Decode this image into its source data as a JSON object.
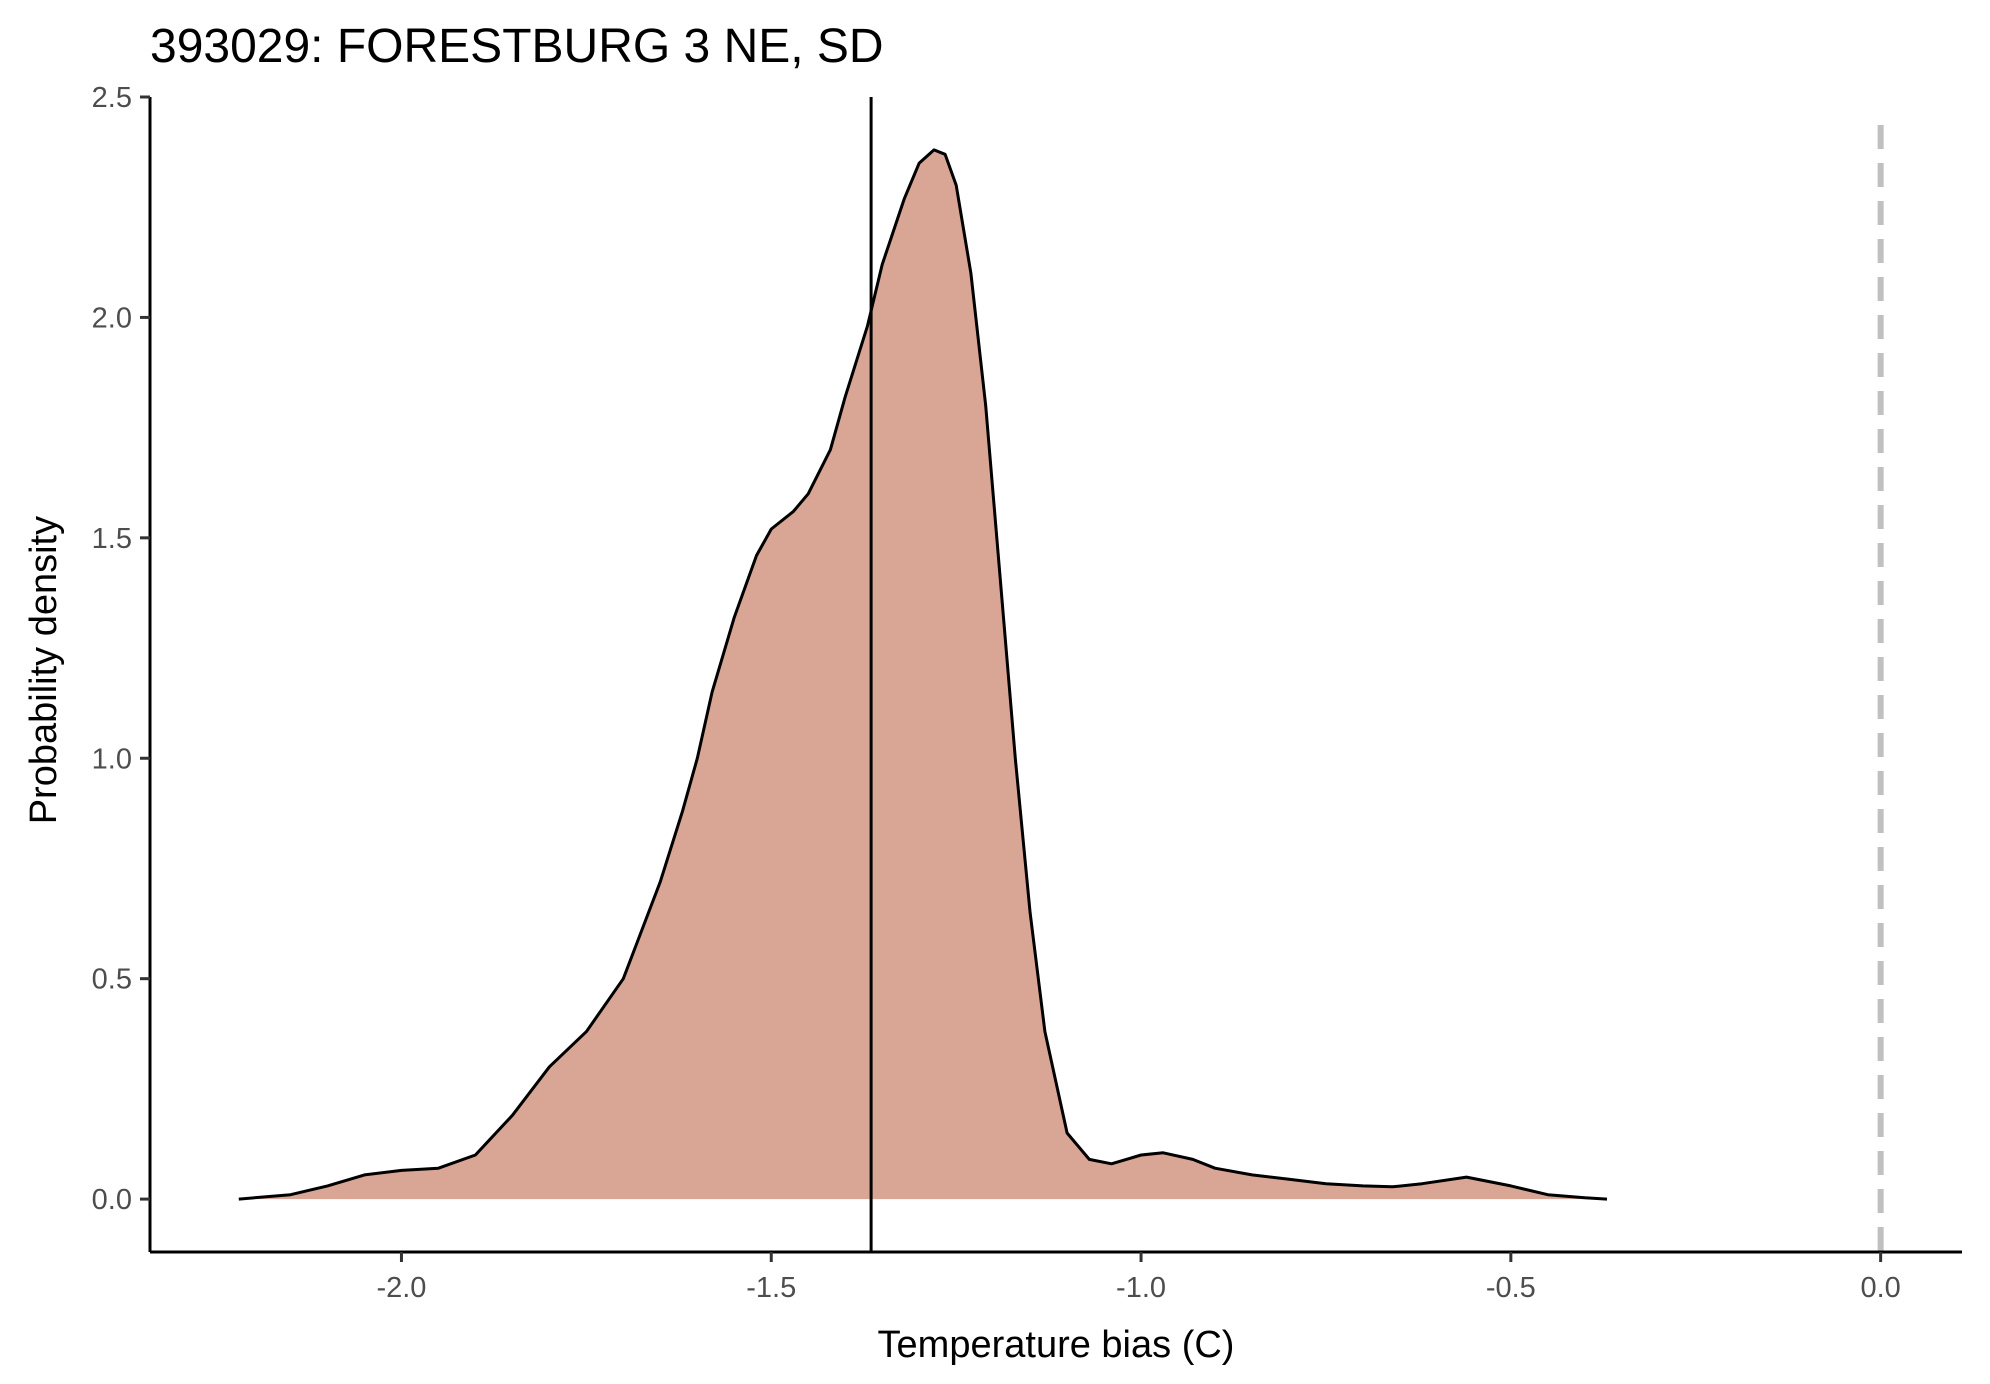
{
  "chart_data": {
    "type": "area",
    "title": "393029: FORESTBURG 3 NE, SD",
    "xlabel": "Temperature bias (C)",
    "ylabel": "Probability density",
    "xlim": [
      -2.34,
      0.11
    ],
    "ylim": [
      -0.12,
      2.5
    ],
    "x_ticks": [
      -2.0,
      -1.5,
      -1.0,
      -0.5,
      0.0
    ],
    "x_tick_labels": [
      "-2.0",
      "-1.5",
      "-1.0",
      "-0.5",
      "0.0"
    ],
    "y_ticks": [
      0.0,
      0.5,
      1.0,
      1.5,
      2.0,
      2.5
    ],
    "y_tick_labels": [
      "0.0",
      "0.5",
      "1.0",
      "1.5",
      "2.0",
      "2.5"
    ],
    "grid": false,
    "series": [
      {
        "fill_color": "#d9a695",
        "line_color": "#000000",
        "x": [
          -2.22,
          -2.15,
          -2.1,
          -2.05,
          -2.0,
          -1.95,
          -1.9,
          -1.85,
          -1.8,
          -1.75,
          -1.7,
          -1.65,
          -1.62,
          -1.6,
          -1.58,
          -1.55,
          -1.52,
          -1.5,
          -1.47,
          -1.45,
          -1.42,
          -1.4,
          -1.37,
          -1.35,
          -1.32,
          -1.3,
          -1.28,
          -1.265,
          -1.25,
          -1.23,
          -1.21,
          -1.19,
          -1.17,
          -1.15,
          -1.13,
          -1.1,
          -1.07,
          -1.04,
          -1.02,
          -1.0,
          -0.97,
          -0.93,
          -0.9,
          -0.85,
          -0.8,
          -0.75,
          -0.7,
          -0.66,
          -0.62,
          -0.56,
          -0.5,
          -0.45,
          -0.4,
          -0.37
        ],
        "y": [
          0.0,
          0.01,
          0.03,
          0.055,
          0.065,
          0.07,
          0.1,
          0.19,
          0.3,
          0.38,
          0.5,
          0.72,
          0.88,
          1.0,
          1.15,
          1.32,
          1.46,
          1.52,
          1.56,
          1.6,
          1.7,
          1.82,
          1.98,
          2.12,
          2.27,
          2.35,
          2.38,
          2.37,
          2.3,
          2.1,
          1.8,
          1.4,
          1.0,
          0.65,
          0.38,
          0.15,
          0.09,
          0.08,
          0.09,
          0.1,
          0.105,
          0.09,
          0.07,
          0.055,
          0.045,
          0.035,
          0.03,
          0.028,
          0.035,
          0.05,
          0.03,
          0.01,
          0.003,
          0.0
        ]
      }
    ],
    "vlines": [
      {
        "x": -1.365,
        "style": "solid",
        "color": "#000000"
      },
      {
        "x": 0.0,
        "style": "dashed",
        "color": "#c0c0c0"
      }
    ]
  }
}
